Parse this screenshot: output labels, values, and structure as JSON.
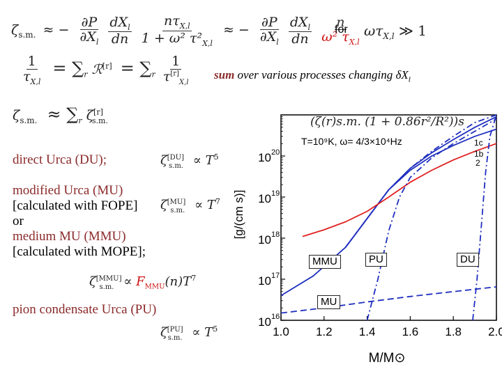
{
  "formulas": {
    "zeta_line": {
      "lhs": "ζ",
      "lhs_sub": "s.m.",
      "approx1": "≈ −",
      "f1_num": "∂P",
      "f1_den": "∂X",
      "f1_den_sub": "l",
      "f2_num": "dX",
      "f2_num_sub": "l",
      "f2_den": "dn",
      "f3_num": "nτ",
      "f3_num_sub": "X,l",
      "f3_den": "1 + ω² τ²",
      "f3_den_sub": "X,l",
      "approx2": "≈ −",
      "f4_num": "∂P",
      "f4_den": "∂X",
      "f4_den_sub": "l",
      "f5_num": "dX",
      "f5_num_sub": "l",
      "f5_den": "dn",
      "f6_num": "n",
      "f6_den": "ω² τ",
      "f6_den_sub": "X,l",
      "for_word": "for",
      "cond": "ωτ",
      "cond_sub": "X,l",
      "cond_rel": "≫ 1"
    },
    "tau_line": {
      "num": "1",
      "den": "τ",
      "den_sub": "X,l",
      "eq": "= ∑",
      "sum_sub": "r",
      "term": "ℛ",
      "term_sup": "[r]",
      "eq2": "= ∑",
      "sum_sub2": "r",
      "num2": "1",
      "den2": "τ",
      "den2_sup": "[r]",
      "den2_sub": "X,l"
    },
    "sum_note_bold": "sum",
    "sum_note_rest": " over various processes changing δX",
    "sum_note_sub": "l",
    "zeta_sum": {
      "lhs": "ζ",
      "lhs_sub": "s.m.",
      "rel": "≈ ∑",
      "sum_sub": "r",
      "term": "ζ",
      "term_sup": "[r]",
      "term_sub": "s.m."
    }
  },
  "processes": [
    {
      "text": "direct Urca (DU);",
      "sym": "ζ",
      "sup": "[DU]",
      "sub": "s.m.",
      "prop": "∝ T",
      "pow": "5"
    },
    {
      "text": "modified Urca (MU)",
      "sym": "ζ",
      "sup": "[MU]",
      "sub": "s.m.",
      "prop": "∝ T",
      "pow": "7"
    },
    {
      "text": "[calculated with FOPE]"
    },
    {
      "text": "or"
    },
    {
      "text": "medium MU (MMU)"
    },
    {
      "text": "[calculated with MOPE];"
    },
    {
      "text": "pion condensate Urca (PU)",
      "sym": "ζ",
      "sup": "[PU]",
      "sub": "s.m.",
      "prop": "∝ T",
      "pow": "5"
    }
  ],
  "mmu_formula": {
    "sym": "ζ",
    "sup": "[MMU]",
    "sub": "s.m.",
    "prop": "∝",
    "factor": "F",
    "factor_sub": "MMU",
    "arg": "(n)T",
    "pow": "7"
  },
  "chart_data": {
    "type": "line",
    "title": "(ζ(r)s.m. (1 + 0.86r²/R²))s",
    "xlabel": "M/M⊙",
    "ylabel": "[g/(cm s)]",
    "xlim": [
      1.0,
      2.0
    ],
    "ylim": [
      1e+16,
      1e+21
    ],
    "log_y": true,
    "x_ticks": [
      "1.0",
      "1.2",
      "1.4",
      "1.6",
      "1.8",
      "2.0"
    ],
    "y_ticks": [
      {
        "base": "10",
        "exp": "16"
      },
      {
        "base": "10",
        "exp": "17"
      },
      {
        "base": "10",
        "exp": "18"
      },
      {
        "base": "10",
        "exp": "19"
      },
      {
        "base": "10",
        "exp": "20"
      }
    ],
    "conditions_text": "T=10⁹K,  ω= 4/3×10⁴Hz",
    "curve_labels": [
      "1c",
      "1b",
      "2"
    ],
    "box_labels": [
      "MMU",
      "PU",
      "DU",
      "MU"
    ],
    "colors": {
      "blue": "#1f2fbf",
      "red": "#e02020"
    },
    "series": [
      {
        "name": "MMU",
        "style": "solid",
        "color": "#1f2fbf",
        "x": [
          1.0,
          1.15,
          1.3,
          1.4,
          1.5,
          1.6,
          1.7,
          1.8,
          1.9,
          2.0
        ],
        "y": [
          4e+16,
          1.2e+17,
          6e+17,
          3e+18,
          1.5e+19,
          5e+19,
          1.2e+20,
          2.5e+20,
          5e+20,
          9e+20
        ]
      },
      {
        "name": "1c",
        "style": "dash-dot",
        "color": "#1f2fbf",
        "x": [
          1.3,
          1.4,
          1.5,
          1.6,
          1.7,
          1.8,
          1.9,
          2.0
        ],
        "y": [
          6e+17,
          3e+18,
          1.5e+19,
          5e+19,
          1.3e+20,
          3e+20,
          6.5e+20,
          1.2e+21
        ]
      },
      {
        "name": "1b",
        "style": "solid",
        "color": "#1f2fbf",
        "x": [
          1.3,
          1.4,
          1.5,
          1.6,
          1.7,
          1.8,
          1.9,
          2.0
        ],
        "y": [
          6e+17,
          3e+18,
          1.5e+19,
          4.5e+19,
          1e+20,
          1.8e+20,
          3e+20,
          4.5e+20
        ]
      },
      {
        "name": "2",
        "style": "solid",
        "color": "#e02020",
        "x": [
          1.1,
          1.2,
          1.3,
          1.4,
          1.5,
          1.6,
          1.7,
          1.8,
          1.9,
          2.0
        ],
        "y": [
          1.1e+18,
          1.6e+18,
          2.5e+18,
          4.5e+18,
          1e+19,
          2.3e+19,
          4.5e+19,
          8e+19,
          1.3e+20,
          2e+20
        ]
      },
      {
        "name": "MU",
        "style": "dashed",
        "color": "#1f2fbf",
        "x": [
          1.0,
          1.2,
          1.4,
          1.6,
          1.8,
          2.0
        ],
        "y": [
          1.5e+16,
          2e+16,
          2.8e+16,
          3.8e+16,
          5e+16,
          6.5e+16
        ]
      },
      {
        "name": "PU",
        "style": "dash-dot",
        "color": "#1f2fbf",
        "x": [
          1.4,
          1.45,
          1.5,
          1.55,
          1.6,
          1.7,
          1.8,
          1.9,
          2.0
        ],
        "y": [
          1e+16,
          1e+17,
          1.5e+18,
          1e+19,
          3e+19,
          9e+19,
          2e+20,
          4e+20,
          8e+20
        ]
      },
      {
        "name": "DU",
        "style": "dash-dot",
        "color": "#1f2fbf",
        "x": [
          1.89,
          1.91,
          1.93,
          1.95,
          1.97,
          2.0
        ],
        "y": [
          1e+16,
          1e+17,
          2e+18,
          4e+19,
          3e+20,
          1.5e+21
        ]
      }
    ]
  }
}
